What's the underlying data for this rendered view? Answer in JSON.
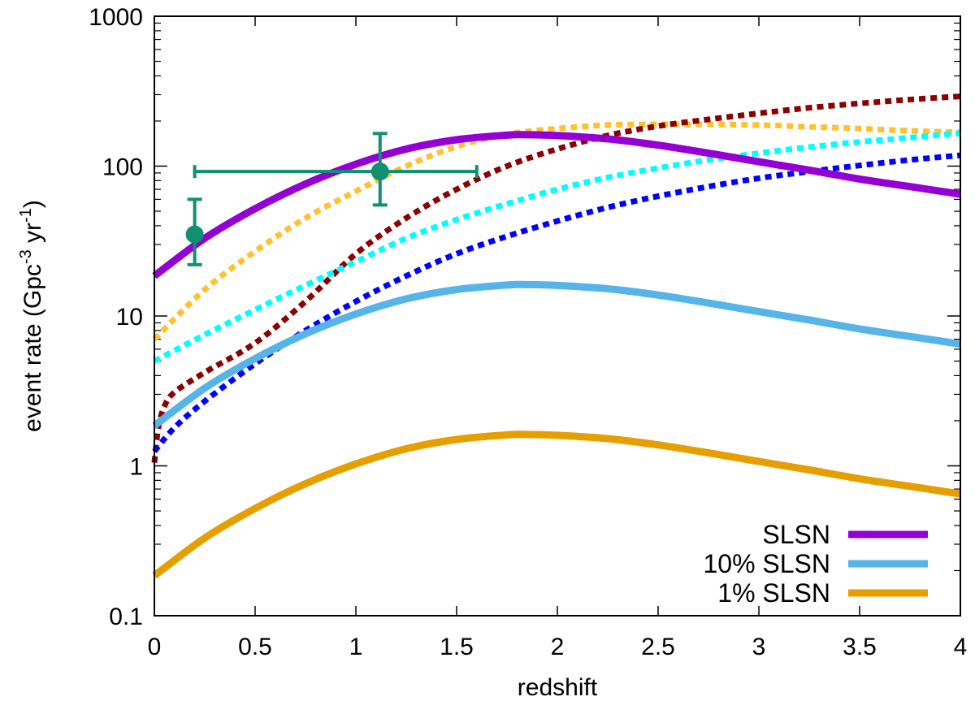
{
  "chart_data": {
    "type": "line",
    "xlabel": "redshift",
    "ylabel": {
      "base": "event rate (Gpc",
      "sup1": "-3",
      "mid": " yr",
      "sup2": "-1",
      "end": ")"
    },
    "xlim": [
      0,
      4
    ],
    "ylim": [
      0.1,
      1000
    ],
    "yscale": "log",
    "x_ticks": [
      {
        "value": 0,
        "label": "0"
      },
      {
        "value": 0.5,
        "label": "0.5"
      },
      {
        "value": 1,
        "label": "1"
      },
      {
        "value": 1.5,
        "label": "1.5"
      },
      {
        "value": 2,
        "label": "2"
      },
      {
        "value": 2.5,
        "label": "2.5"
      },
      {
        "value": 3,
        "label": "3"
      },
      {
        "value": 3.5,
        "label": "3.5"
      },
      {
        "value": 4,
        "label": "4"
      }
    ],
    "y_ticks": [
      {
        "value": 0.1,
        "label": "0.1"
      },
      {
        "value": 1,
        "label": "1"
      },
      {
        "value": 10,
        "label": "10"
      },
      {
        "value": 100,
        "label": "100"
      },
      {
        "value": 1000,
        "label": "1000"
      }
    ],
    "legend_position": "bottom-right",
    "series": [
      {
        "name": "SLSN",
        "style": "solid",
        "color": "#9400d3",
        "in_legend": true,
        "x": [
          0,
          0.25,
          0.5,
          0.75,
          1.0,
          1.25,
          1.5,
          1.75,
          1.85,
          2.0,
          2.25,
          2.5,
          2.75,
          3.0,
          3.25,
          3.5,
          3.75,
          4.0
        ],
        "y": [
          18.5,
          33,
          52,
          76,
          103,
          130,
          150,
          161,
          162,
          160,
          152,
          138,
          122,
          107,
          94,
          82,
          73,
          65
        ]
      },
      {
        "name": "10% SLSN",
        "style": "solid",
        "color": "#56b4e9",
        "in_legend": true,
        "x": [
          0,
          0.25,
          0.5,
          0.75,
          1.0,
          1.25,
          1.5,
          1.75,
          1.85,
          2.0,
          2.25,
          2.5,
          2.75,
          3.0,
          3.25,
          3.5,
          3.75,
          4.0
        ],
        "y": [
          1.85,
          3.3,
          5.2,
          7.6,
          10.3,
          13.0,
          15.0,
          16.1,
          16.2,
          16.0,
          15.2,
          13.8,
          12.2,
          10.7,
          9.4,
          8.2,
          7.3,
          6.5
        ]
      },
      {
        "name": "1% SLSN",
        "style": "solid",
        "color": "#e69f00",
        "in_legend": true,
        "x": [
          0,
          0.25,
          0.5,
          0.75,
          1.0,
          1.25,
          1.5,
          1.75,
          1.85,
          2.0,
          2.25,
          2.5,
          2.75,
          3.0,
          3.25,
          3.5,
          3.75,
          4.0
        ],
        "y": [
          0.185,
          0.33,
          0.52,
          0.76,
          1.03,
          1.3,
          1.5,
          1.61,
          1.62,
          1.6,
          1.52,
          1.38,
          1.22,
          1.07,
          0.94,
          0.82,
          0.73,
          0.65
        ]
      },
      {
        "name": "dotted-orange",
        "style": "dotted",
        "color": "#ffc130",
        "in_legend": false,
        "x": [
          0,
          0.25,
          0.5,
          0.75,
          1.0,
          1.25,
          1.5,
          1.75,
          2.0,
          2.25,
          2.5,
          2.75,
          3.0,
          3.25,
          3.5,
          3.75,
          4.0
        ],
        "y": [
          7,
          15,
          27,
          45,
          68,
          100,
          135,
          163,
          178,
          188,
          190,
          190,
          188,
          183,
          178,
          172,
          168
        ]
      },
      {
        "name": "dotted-darkred",
        "style": "dotted",
        "color": "#8b0000",
        "in_legend": false,
        "x": [
          0,
          0.02,
          0.05,
          0.1,
          0.25,
          0.5,
          0.75,
          1.0,
          1.25,
          1.5,
          1.75,
          2.0,
          2.25,
          2.5,
          2.75,
          3.0,
          3.25,
          3.5,
          3.75,
          4.0
        ],
        "y": [
          1.05,
          1.8,
          2.5,
          3.1,
          4.2,
          6.6,
          12.5,
          26,
          45,
          70,
          100,
          130,
          160,
          185,
          205,
          225,
          245,
          262,
          278,
          292
        ]
      },
      {
        "name": "dotted-cyan",
        "style": "dotted",
        "color": "#00ffff",
        "in_legend": false,
        "x": [
          0,
          0.25,
          0.5,
          0.75,
          1.0,
          1.25,
          1.5,
          1.75,
          2.0,
          2.25,
          2.5,
          2.75,
          3.0,
          3.25,
          3.5,
          3.75,
          4.0
        ],
        "y": [
          5,
          7.5,
          11,
          16,
          23,
          33,
          44,
          56,
          70,
          84,
          97,
          110,
          122,
          134,
          145,
          155,
          166
        ]
      },
      {
        "name": "dotted-blue",
        "style": "dotted",
        "color": "#0000ff",
        "in_legend": false,
        "x": [
          0,
          0.1,
          0.25,
          0.5,
          0.75,
          1.0,
          1.25,
          1.5,
          1.75,
          2.0,
          2.25,
          2.5,
          2.75,
          3.0,
          3.25,
          3.5,
          3.75,
          4.0
        ],
        "y": [
          1.25,
          1.8,
          2.7,
          4.8,
          8,
          12.5,
          18.5,
          26,
          34,
          43,
          53,
          63,
          73,
          83,
          92,
          101,
          110,
          118
        ]
      }
    ],
    "data_points": [
      {
        "x": 0.2,
        "y": 35,
        "xerr": [
          0,
          0
        ],
        "yerr": [
          22,
          60
        ],
        "color": "#109070"
      },
      {
        "x": 1.12,
        "y": 92,
        "xerr": [
          0.2,
          1.6
        ],
        "yerr": [
          55,
          165
        ],
        "color": "#109070"
      }
    ]
  }
}
